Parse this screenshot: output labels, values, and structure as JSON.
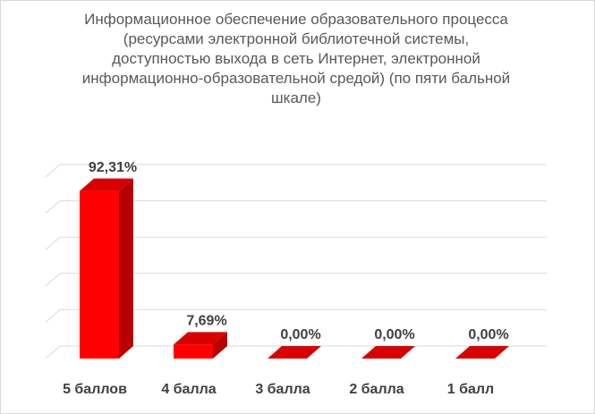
{
  "chart_data": {
    "type": "bar3d",
    "title": "Информационное обеспечение образовательного процесса (ресурсами электронной библиотечной системы, доступностью выхода в сеть Интернет, электронной информационно-образовательной средой)   (по пяти бальной шкале)",
    "categories": [
      "5 баллов",
      "4 балла",
      "3  балла",
      "2 балла",
      "1 балл"
    ],
    "values": [
      92.31,
      7.69,
      0,
      0,
      0
    ],
    "value_labels": [
      "92,31%",
      "7,69%",
      "0,00%",
      "0,00%",
      "0,00%"
    ],
    "color": "#ff0000",
    "ylim": [
      0,
      100
    ],
    "yticks": [
      0,
      20,
      40,
      60,
      80,
      100
    ],
    "grid": true
  }
}
